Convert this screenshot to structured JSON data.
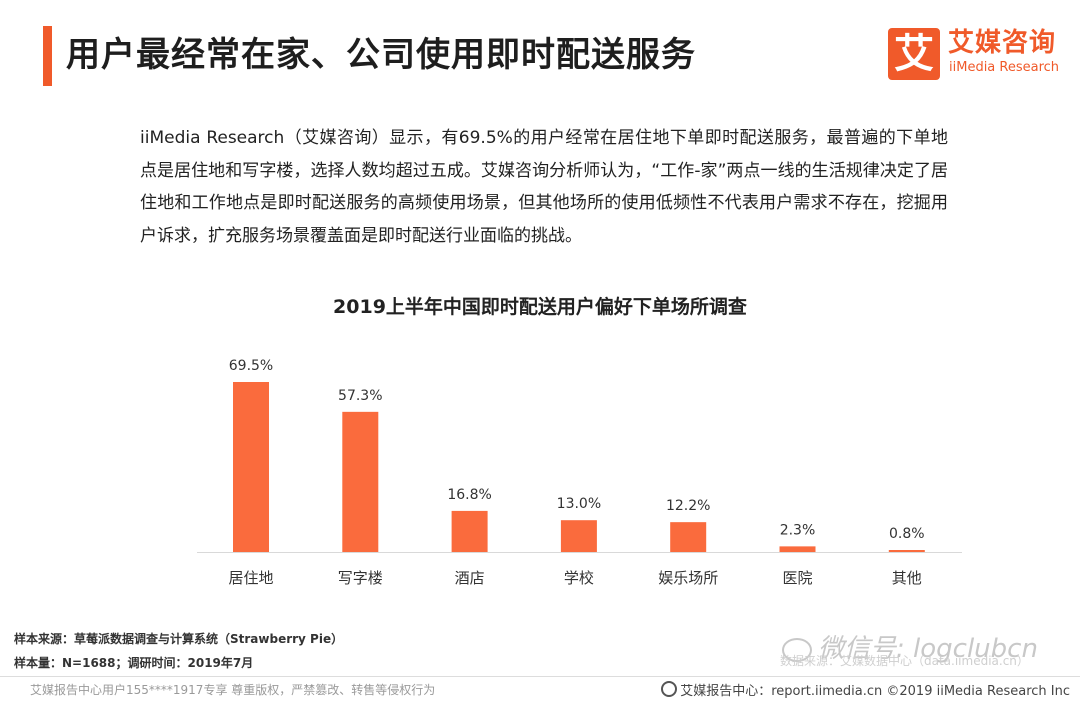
{
  "header": {
    "title": "用户最经常在家、公司使用即时配送服务",
    "logo_cn": "艾媒咨询",
    "logo_en": "iiMedia Research",
    "logo_mark": "艾"
  },
  "description": "iiMedia Research（艾媒咨询）显示，有69.5%的用户经常在居住地下单即时配送服务，最普遍的下单地点是居住地和写字楼，选择人数均超过五成。艾媒咨询分析师认为，“工作-家”两点一线的生活规律决定了居住地和工作地点是即时配送服务的高频使用场景，但其他场所的使用低频性不代表用户需求不存在，挖掘用户诉求，扩充服务场景覆盖面是即时配送行业面临的挑战。",
  "chart_data": {
    "type": "bar",
    "title": "2019上半年中国即时配送用户偏好下单场所调查",
    "categories": [
      "居住地",
      "写字楼",
      "酒店",
      "学校",
      "娱乐场所",
      "医院",
      "其他"
    ],
    "values": [
      69.5,
      57.3,
      16.8,
      13.0,
      12.2,
      2.3,
      0.8
    ],
    "value_labels": [
      "69.5%",
      "57.3%",
      "16.8%",
      "13.0%",
      "12.2%",
      "2.3%",
      "0.8%"
    ],
    "unit": "%",
    "ylim": [
      0,
      69.5
    ],
    "bar_color": "#fa6b3d",
    "grid": false,
    "legend": "none"
  },
  "source": {
    "line1": "样本来源：草莓派数据调查与计算系统（Strawberry Pie）",
    "line2": "样本量：N=1688；调研时间：2019年7月"
  },
  "watermark": {
    "text": "微信号: logclubcn",
    "faded": "数据来源：艾媒数据中心（data.iimedia.cn）"
  },
  "footer": {
    "left": "艾媒报告中心用户155****1917专享 尊重版权，严禁篡改、转售等侵权行为",
    "right": "艾媒报告中心：report.iimedia.cn ©2019 iiMedia Research Inc"
  },
  "colors": {
    "accent": "#f05a2a",
    "bar": "#fa6b3d"
  }
}
